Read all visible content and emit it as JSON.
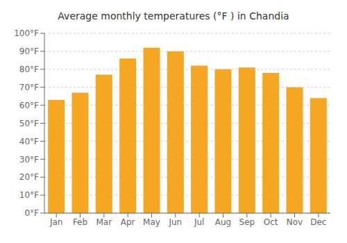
{
  "chart_data": {
    "type": "bar",
    "title": "Average monthly temperatures (°F ) in Chandia",
    "categories": [
      "Jan",
      "Feb",
      "Mar",
      "Apr",
      "May",
      "Jun",
      "Jul",
      "Aug",
      "Sep",
      "Oct",
      "Nov",
      "Dec"
    ],
    "values": [
      63,
      67,
      77,
      86,
      92,
      90,
      82,
      80,
      81,
      78,
      70,
      64
    ],
    "color": "#F5A623",
    "ylim": [
      0,
      100
    ],
    "yticks": [
      {
        "value": 0,
        "label": "0°F"
      },
      {
        "value": 10,
        "label": "10°F"
      },
      {
        "value": 20,
        "label": "20°F"
      },
      {
        "value": 30,
        "label": "30°F"
      },
      {
        "value": 40,
        "label": "40°F"
      },
      {
        "value": 50,
        "label": "50°F"
      },
      {
        "value": 60,
        "label": "60°F"
      },
      {
        "value": 70,
        "label": "70°F"
      },
      {
        "value": 80,
        "label": "80°F"
      },
      {
        "value": 90,
        "label": "90°F"
      },
      {
        "value": 100,
        "label": "100°F"
      }
    ],
    "grid": true
  }
}
